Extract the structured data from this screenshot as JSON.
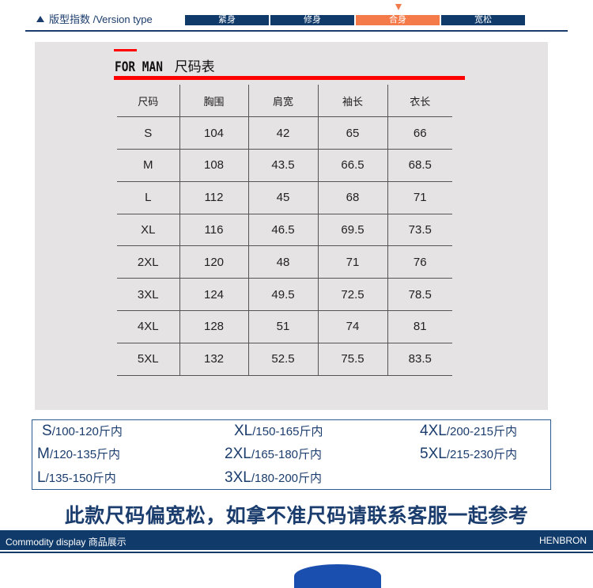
{
  "version": {
    "label": "版型指数 /Version type",
    "options": [
      "紧身",
      "修身",
      "合身",
      "宽松"
    ],
    "selected": "合身",
    "accent": "#f47a4a",
    "primary": "#0f3a6a"
  },
  "size_chart": {
    "title_en": "FOR MAN",
    "title_cn": "尺码表",
    "headers": [
      "尺码",
      "胸围",
      "肩宽",
      "袖长",
      "衣长"
    ],
    "rows": [
      [
        "S",
        "104",
        "42",
        "65",
        "66"
      ],
      [
        "M",
        "108",
        "43.5",
        "66.5",
        "68.5"
      ],
      [
        "L",
        "112",
        "45",
        "68",
        "71"
      ],
      [
        "XL",
        "116",
        "46.5",
        "69.5",
        "73.5"
      ],
      [
        "2XL",
        "120",
        "48",
        "71",
        "76"
      ],
      [
        "3XL",
        "124",
        "49.5",
        "72.5",
        "78.5"
      ],
      [
        "4XL",
        "128",
        "51",
        "74",
        "81"
      ],
      [
        "5XL",
        "132",
        "52.5",
        "75.5",
        "83.5"
      ]
    ]
  },
  "weights": [
    {
      "size": "S",
      "range": "/100-120斤内"
    },
    {
      "size": "M",
      "range": "/120-135斤内"
    },
    {
      "size": "L",
      "range": "/135-150斤内"
    },
    {
      "size": "XL",
      "range": "/150-165斤内"
    },
    {
      "size": "2XL",
      "range": "/165-180斤内"
    },
    {
      "size": "3XL",
      "range": "/180-200斤内"
    },
    {
      "size": "4XL",
      "range": "/200-215斤内"
    },
    {
      "size": "5XL",
      "range": "/215-230斤内"
    }
  ],
  "note": "此款尺码偏宽松，如拿不准尺码请联系客服一起参考",
  "footer": {
    "left": "Commodity display  商品展示",
    "right": "HENBRON"
  }
}
